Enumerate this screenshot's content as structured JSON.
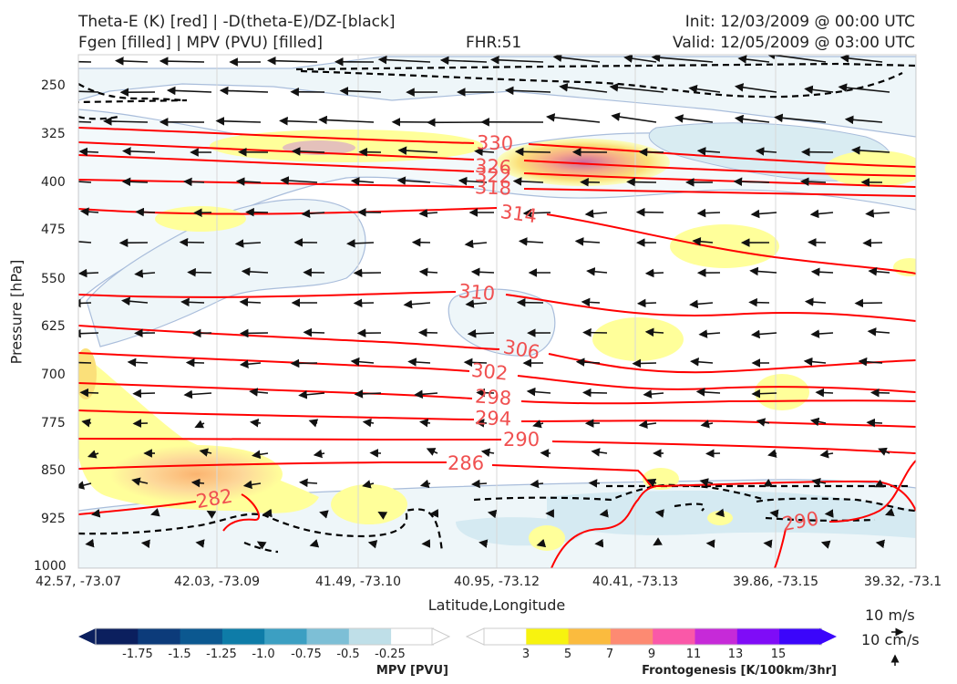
{
  "header": {
    "title_left_line1": "Theta-E (K) [red] | -D(theta-E)/DZ-[black]",
    "title_left_line2": "Fgen [filled] | MPV (PVU) [filled]",
    "fhr": "FHR:51",
    "init": "Init: 12/03/2009 @ 00:00 UTC",
    "valid": "Valid: 12/05/2009 @ 03:00 UTC"
  },
  "chart_data": {
    "type": "cross-section",
    "xlabel": "Latitude,Longitude",
    "ylabel": "Pressure [hPa]",
    "x_ticks": [
      "42.57, -73.07",
      "42.03, -73.09",
      "41.49, -73.10",
      "40.95, -73.12",
      "40.41, -73.13",
      "39.86, -73.15",
      "39.32, -73.1"
    ],
    "y_ticks": [
      250,
      325,
      400,
      475,
      550,
      625,
      700,
      775,
      850,
      925,
      1000
    ],
    "ylim": [
      1000,
      190
    ],
    "y_scale": "linear, inverted",
    "grid": true,
    "theta_e_contours": [
      {
        "label": "330",
        "pressure_left": 345,
        "pressure_right": 395
      },
      {
        "label": "326",
        "pressure_left": 365,
        "pressure_right": 405
      },
      {
        "label": "322",
        "pressure_left": 380,
        "pressure_right": 410
      },
      {
        "label": "318",
        "pressure_left": 393,
        "pressure_right": 420
      },
      {
        "label": "314",
        "pressure_left": 433,
        "pressure_right": 535
      },
      {
        "label": "310",
        "pressure_left": 560,
        "pressure_right": 600
      },
      {
        "label": "306",
        "pressure_left": 597,
        "pressure_right": 647
      },
      {
        "label": "302",
        "pressure_left": 652,
        "pressure_right": 700
      },
      {
        "label": "298",
        "pressure_left": 688,
        "pressure_right": 732
      },
      {
        "label": "294",
        "pressure_left": 738,
        "pressure_right": 758
      },
      {
        "label": "290",
        "pressure_left": 783,
        "pressure_right": 798
      },
      {
        "label": "286",
        "pressure_left": 815,
        "pressure_right": 815
      },
      {
        "label": "282",
        "pressure_left": 925,
        "pressure_right": 925
      },
      {
        "label": "290",
        "pressure_left": null,
        "pressure_right": null
      }
    ],
    "wind_reference": {
      "horizontal": "10 m/s",
      "vertical": "10 cm/s"
    },
    "colorbars": [
      {
        "title": "MPV [PVU]",
        "ticks": [
          "-1.75",
          "-1.5",
          "-1.25",
          "-1.0",
          "-0.75",
          "-0.5",
          "-0.25"
        ],
        "colors": [
          "#0b1f5e",
          "#0c3b7a",
          "#0b5890",
          "#0e7ca8",
          "#3c9fc2",
          "#7dbfd6",
          "#bfdfe8",
          "#ffffff"
        ]
      },
      {
        "title": "Frontogenesis [K/100km/3hr]",
        "ticks": [
          "3",
          "5",
          "7",
          "9",
          "11",
          "13",
          "15"
        ],
        "colors": [
          "#ffffff",
          "#f7f30f",
          "#fbbb3e",
          "#fd8a72",
          "#fa58a8",
          "#c62ad8",
          "#7f0cf7",
          "#3b05fb"
        ]
      }
    ],
    "colors": {
      "theta_e": "#ff0000",
      "contour_label": "#f05050",
      "stability": "#000000",
      "mpv_outline": "#9fb6d6",
      "plot_background": "#ffffff"
    }
  }
}
